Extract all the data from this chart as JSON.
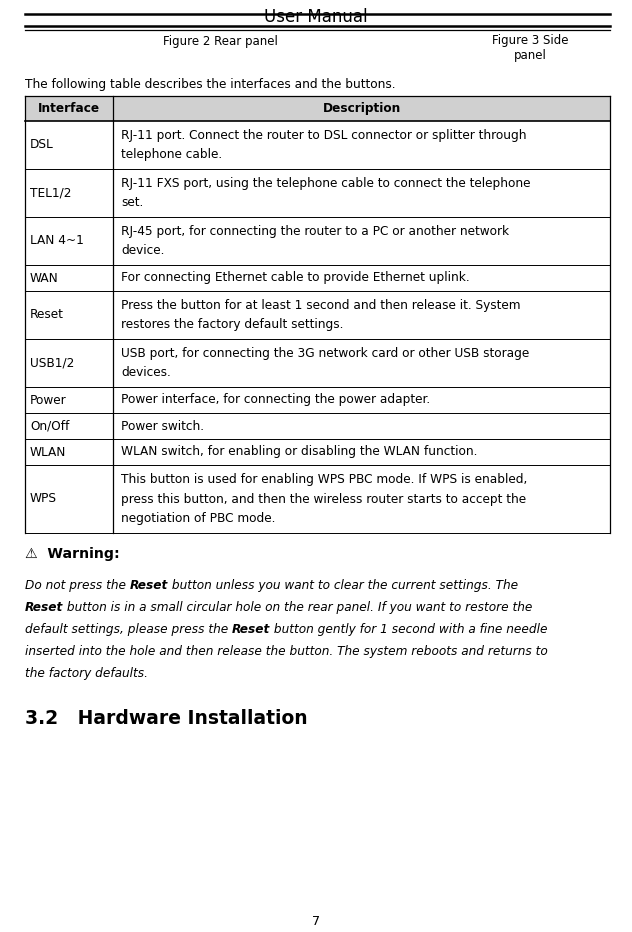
{
  "title": "User Manual",
  "fig2_caption": "Figure 2 Rear panel",
  "fig3_caption": "Figure 3 Side\npanel",
  "table_intro": "The following table describes the interfaces and the buttons.",
  "table_header": [
    "Interface",
    "Description"
  ],
  "table_rows": [
    [
      "DSL",
      "RJ-11 port. Connect the router to DSL connector or splitter through\ntelephone cable."
    ],
    [
      "TEL1/2",
      "RJ-11 FXS port, using the telephone cable to connect the telephone\nset."
    ],
    [
      "LAN 4~1",
      "RJ-45 port, for connecting the router to a PC or another network\ndevice."
    ],
    [
      "WAN",
      "For connecting Ethernet cable to provide Ethernet uplink."
    ],
    [
      "Reset",
      "Press the button for at least 1 second and then release it. System\nrestores the factory default settings."
    ],
    [
      "USB1/2",
      "USB port, for connecting the 3G network card or other USB storage\ndevices."
    ],
    [
      "Power",
      "Power interface, for connecting the power adapter."
    ],
    [
      "On/Off",
      "Power switch."
    ],
    [
      "WLAN",
      "WLAN switch, for enabling or disabling the WLAN function."
    ],
    [
      "WPS",
      "This button is used for enabling WPS PBC mode. If WPS is enabled,\npress this button, and then the wireless router starts to accept the\nnegotiation of PBC mode."
    ]
  ],
  "warning_title": "⚠  Warning:",
  "warning_lines": [
    [
      [
        "italic",
        "Do not press the "
      ],
      [
        "bold_italic",
        "Reset"
      ],
      [
        "italic",
        " button unless you want to clear the current settings. The"
      ]
    ],
    [
      [
        "bold_italic",
        "Reset"
      ],
      [
        "italic",
        " button is in a small circular hole on the rear panel. If you want to restore the"
      ]
    ],
    [
      [
        "italic",
        "default settings, please press the "
      ],
      [
        "bold_italic",
        "Reset"
      ],
      [
        "italic",
        " button gently for 1 second with a fine needle"
      ]
    ],
    [
      [
        "italic",
        "inserted into the hole and then release the button. The system reboots and returns to"
      ]
    ],
    [
      [
        "italic",
        "the factory defaults."
      ]
    ]
  ],
  "section_title": "3.2   Hardware Installation",
  "page_number": "7",
  "header_bg": "#d0d0d0",
  "bg_color": "#ffffff",
  "font_size_title": 12,
  "font_size_body": 8.2,
  "font_size_section": 13.5
}
